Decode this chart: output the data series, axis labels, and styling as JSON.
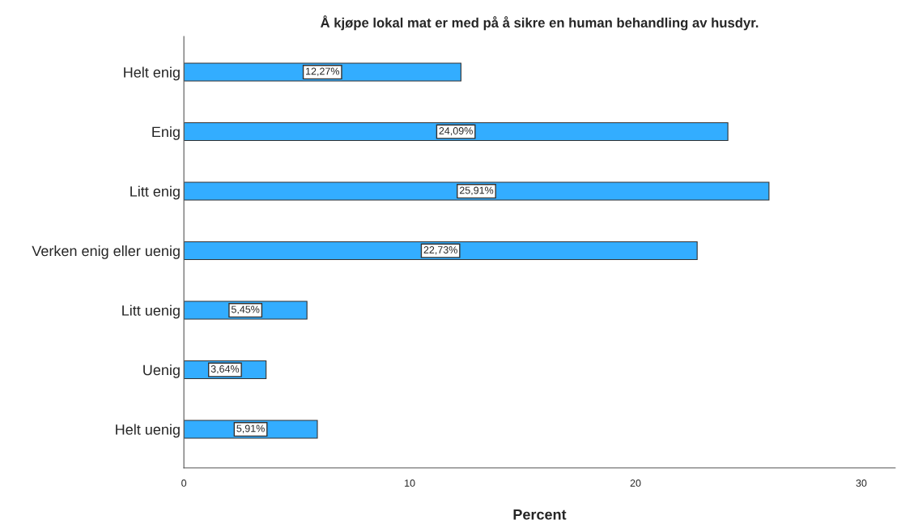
{
  "chart_data": {
    "type": "bar",
    "orientation": "horizontal",
    "title": "Å kjøpe lokal mat er med på å sikre en human behandling av husdyr.",
    "xlabel": "Percent",
    "categories": [
      "Helt enig",
      "Enig",
      "Litt enig",
      "Verken enig eller uenig",
      "Litt uenig",
      "Uenig",
      "Helt uenig"
    ],
    "values": [
      12.27,
      24.09,
      25.91,
      22.73,
      5.45,
      3.64,
      5.91
    ],
    "value_labels": [
      "12,27%",
      "24,09%",
      "25,91%",
      "22,73%",
      "5,45%",
      "3,64%",
      "5,91%"
    ],
    "color": "#33adff",
    "xlim": [
      0,
      31.5
    ],
    "xticks": [
      0,
      10,
      20,
      30
    ],
    "grid": false,
    "legend": false
  }
}
